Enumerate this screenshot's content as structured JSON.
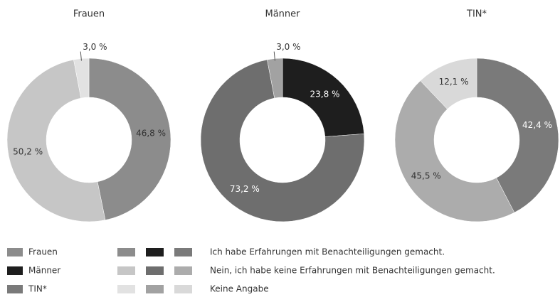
{
  "chart_data": [
    {
      "type": "pie",
      "title": "Frauen",
      "group_color": "#8c8c8c",
      "categories": [
        "Ich habe Erfahrungen mit Benachteiligungen gemacht.",
        "Nein, ich habe keine Erfahrungen mit Benachteiligungen gemacht.",
        "Keine Angabe"
      ],
      "values": [
        46.8,
        50.2,
        3.0
      ],
      "value_labels": [
        "46,8 %",
        "50,2 %",
        "3,0 %"
      ],
      "colors": [
        "#8c8c8c",
        "#c6c6c6",
        "#e2e2e2"
      ]
    },
    {
      "type": "pie",
      "title": "Männer",
      "group_color": "#1e1e1e",
      "values": [
        23.8,
        73.2,
        3.0
      ],
      "value_labels": [
        "23,8 %",
        "73,2 %",
        "3,0 %"
      ],
      "colors": [
        "#1e1e1e",
        "#6e6e6e",
        "#a2a2a2"
      ]
    },
    {
      "type": "pie",
      "title": "TIN*",
      "group_color": "#7a7a7a",
      "values": [
        42.4,
        45.5,
        12.1
      ],
      "value_labels": [
        "42,4 %",
        "45,5 %",
        "12,1 %"
      ],
      "colors": [
        "#7a7a7a",
        "#acacac",
        "#d9d9d9"
      ]
    }
  ]
}
